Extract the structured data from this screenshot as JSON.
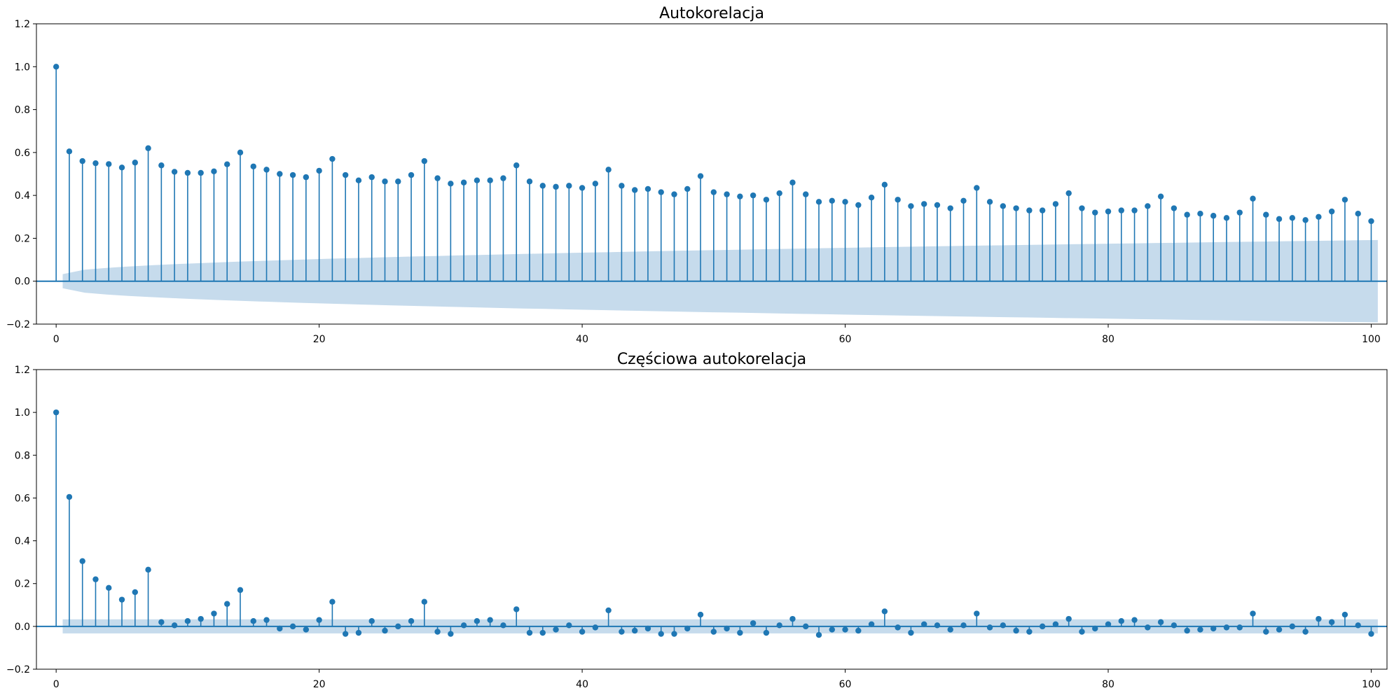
{
  "chart_data": [
    {
      "type": "stem",
      "title": "Autokorelacja",
      "xlim": [
        -1.5,
        101.2
      ],
      "ylim": [
        -0.2,
        1.2
      ],
      "xticks": [
        "0",
        "20",
        "40",
        "60",
        "80",
        "100"
      ],
      "yticks": [
        "−0.2",
        "0.0",
        "0.2",
        "0.4",
        "0.6",
        "0.8",
        "1.0",
        "1.2"
      ],
      "confidence_band": {
        "start": 0.033,
        "end": 0.192
      },
      "x_start": 0,
      "values": [
        1.0,
        0.605,
        0.56,
        0.55,
        0.546,
        0.53,
        0.553,
        0.62,
        0.54,
        0.51,
        0.505,
        0.505,
        0.512,
        0.545,
        0.6,
        0.535,
        0.52,
        0.5,
        0.495,
        0.485,
        0.515,
        0.57,
        0.495,
        0.47,
        0.485,
        0.465,
        0.465,
        0.495,
        0.56,
        0.48,
        0.455,
        0.46,
        0.47,
        0.47,
        0.48,
        0.54,
        0.465,
        0.445,
        0.44,
        0.445,
        0.435,
        0.455,
        0.52,
        0.445,
        0.425,
        0.43,
        0.415,
        0.405,
        0.43,
        0.49,
        0.415,
        0.405,
        0.395,
        0.4,
        0.38,
        0.41,
        0.46,
        0.405,
        0.37,
        0.375,
        0.37,
        0.355,
        0.39,
        0.45,
        0.38,
        0.35,
        0.36,
        0.355,
        0.34,
        0.375,
        0.435,
        0.37,
        0.35,
        0.34,
        0.33,
        0.33,
        0.36,
        0.41,
        0.34,
        0.32,
        0.325,
        0.33,
        0.33,
        0.35,
        0.395,
        0.34,
        0.31,
        0.315,
        0.305,
        0.295,
        0.32,
        0.385,
        0.31,
        0.29,
        0.295,
        0.285,
        0.3,
        0.325,
        0.38,
        0.315,
        0.28
      ]
    },
    {
      "type": "stem",
      "title": "Częściowa autokorelacja",
      "xlim": [
        -1.5,
        101.2
      ],
      "ylim": [
        -0.2,
        1.2
      ],
      "xticks": [
        "0",
        "20",
        "40",
        "60",
        "80",
        "100"
      ],
      "yticks": [
        "−0.2",
        "0.0",
        "0.2",
        "0.4",
        "0.6",
        "0.8",
        "1.0",
        "1.2"
      ],
      "confidence_band": {
        "start": 0.033,
        "end": 0.033
      },
      "x_start": 0,
      "values": [
        1.0,
        0.605,
        0.305,
        0.22,
        0.18,
        0.125,
        0.16,
        0.265,
        0.02,
        0.005,
        0.025,
        0.035,
        0.06,
        0.105,
        0.17,
        0.025,
        0.03,
        -0.01,
        0.0,
        -0.015,
        0.03,
        0.115,
        -0.035,
        -0.03,
        0.025,
        -0.02,
        0.0,
        0.025,
        0.115,
        -0.025,
        -0.035,
        0.005,
        0.025,
        0.03,
        0.005,
        0.08,
        -0.03,
        -0.03,
        -0.015,
        0.005,
        -0.025,
        -0.005,
        0.075,
        -0.025,
        -0.02,
        -0.01,
        -0.035,
        -0.035,
        -0.01,
        0.055,
        -0.025,
        -0.01,
        -0.03,
        0.015,
        -0.03,
        0.005,
        0.035,
        0.0,
        -0.04,
        -0.015,
        -0.015,
        -0.02,
        0.01,
        0.07,
        -0.005,
        -0.03,
        0.01,
        0.005,
        -0.015,
        0.005,
        0.06,
        -0.005,
        0.005,
        -0.02,
        -0.025,
        0.0,
        0.01,
        0.035,
        -0.025,
        -0.01,
        0.01,
        0.025,
        0.03,
        -0.005,
        0.02,
        0.005,
        -0.02,
        -0.015,
        -0.01,
        -0.005,
        -0.005,
        0.06,
        -0.025,
        -0.015,
        0.0,
        -0.025,
        0.035,
        0.02,
        0.055,
        0.005,
        -0.035
      ]
    }
  ],
  "colors": {
    "stem": "#1f77b4",
    "band": "#c6dbec",
    "axis": "#000000"
  }
}
